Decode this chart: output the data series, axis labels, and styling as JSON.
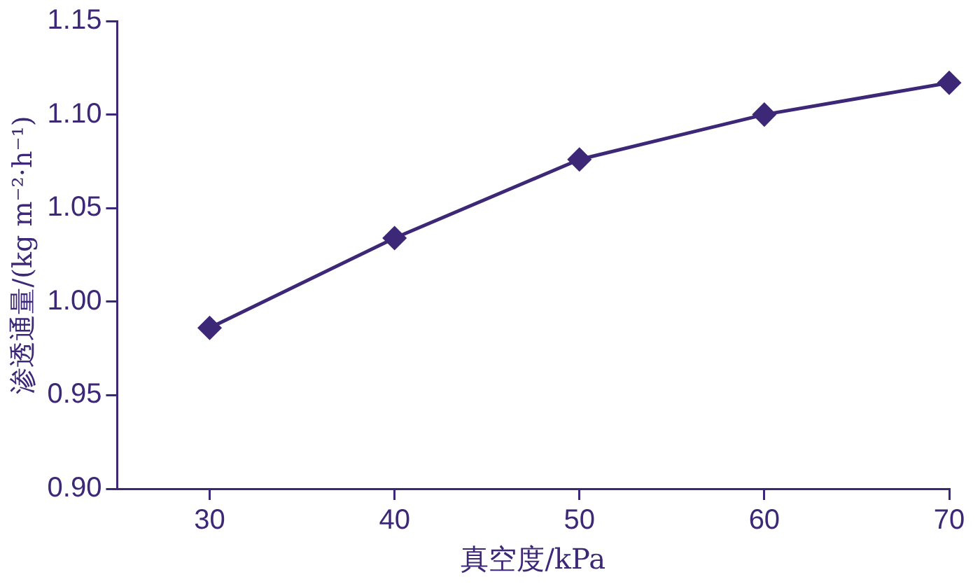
{
  "chart_data": {
    "type": "line",
    "xlabel": "真空度/kPa",
    "ylabel": "渗透通量/(kg m⁻²·h⁻¹)",
    "x": [
      30,
      40,
      50,
      60,
      70
    ],
    "series": [
      {
        "color": "#3d2878",
        "values": [
          0.986,
          1.034,
          1.076,
          1.1,
          1.117
        ]
      }
    ],
    "xlim": [
      25,
      70
    ],
    "xticks": [
      30,
      40,
      50,
      60,
      70
    ],
    "ylim": [
      0.9,
      1.15
    ],
    "yticks": [
      {
        "value": 0.9,
        "label": "0.90"
      },
      0.95,
      {
        "value": 1,
        "label": "1.00"
      },
      1.05,
      {
        "value": 1.1,
        "label": "1.10"
      },
      1.15
    ],
    "grid": false,
    "legend": false,
    "marker": "diamond",
    "line_style": "solid"
  }
}
